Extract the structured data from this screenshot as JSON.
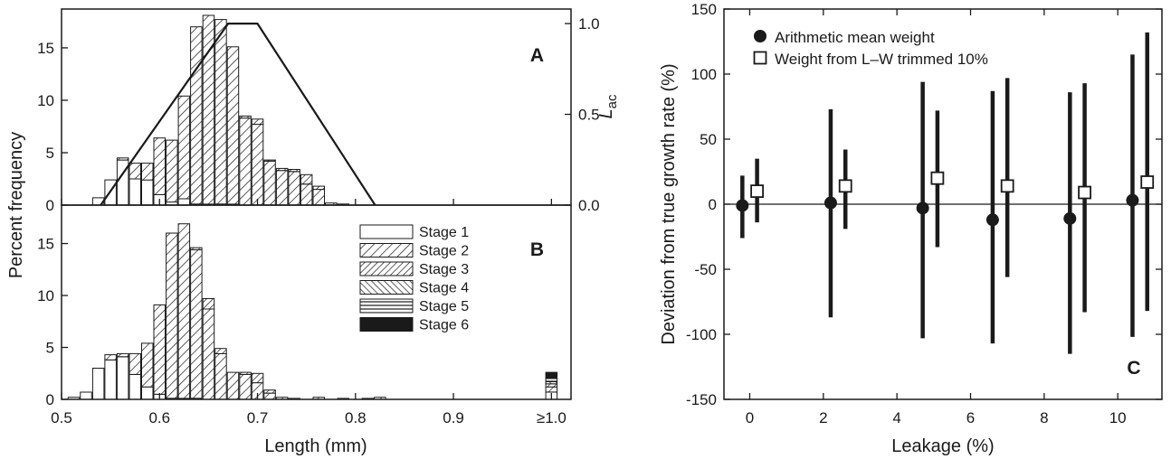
{
  "colors": {
    "ink": "#1a1a1a",
    "background": "#ffffff"
  },
  "chart_data": [
    {
      "panel": "A",
      "type": "bar",
      "stacked": true,
      "xlabel": "",
      "ylabel": "Percent frequency",
      "xlim": [
        0.5,
        1.02
      ],
      "ylim": [
        0,
        18.7
      ],
      "yticks": [
        0,
        5,
        10,
        15
      ],
      "y2label": {
        "main": "L",
        "sub": "ac"
      },
      "y2lim": [
        0,
        1.08
      ],
      "y2ticks": [
        "0.0",
        "0.5",
        "1.0"
      ],
      "bin_width": 0.0125,
      "bins": [
        0.5375,
        0.55,
        0.5625,
        0.575,
        0.5875,
        0.6,
        0.6125,
        0.625,
        0.6375,
        0.65,
        0.6625,
        0.675,
        0.6875,
        0.7,
        0.7125,
        0.725,
        0.7375,
        0.75,
        0.7625,
        0.775,
        0.7875,
        0.8,
        0.8125,
        0.825,
        0.8375
      ],
      "series": [
        {
          "name": "Stage 1",
          "values": [
            0.7,
            2.4,
            4.3,
            2.5,
            2.4,
            1.0,
            0.3,
            0.6,
            0.1,
            0.1,
            0.1,
            0.1,
            0,
            0,
            0,
            0,
            0,
            0,
            0,
            0,
            0,
            0,
            0,
            0,
            0
          ]
        },
        {
          "name": "Stage 2",
          "values": [
            0,
            0,
            0.2,
            1.5,
            1.6,
            5.4,
            5.9,
            9.8,
            16.9,
            18.0,
            17.6,
            15.0,
            8.3,
            7.7,
            4.2,
            3.3,
            3.2,
            2.0,
            1.5,
            0.2,
            0.1,
            0,
            0,
            0,
            0
          ]
        },
        {
          "name": "Stage 3",
          "values": [
            0,
            0,
            0,
            0,
            0,
            0,
            0,
            0,
            0,
            0,
            0,
            0,
            0.2,
            0.5,
            0.1,
            0.2,
            0.2,
            0.9,
            0.3,
            0,
            0,
            0,
            0,
            0,
            0
          ]
        },
        {
          "name": "Stage 4",
          "values": [
            0,
            0,
            0,
            0,
            0,
            0,
            0,
            0,
            0,
            0,
            0,
            0,
            0,
            0,
            0,
            0,
            0,
            0,
            0,
            0,
            0,
            0,
            0,
            0,
            0
          ]
        },
        {
          "name": "Stage 5",
          "values": [
            0,
            0,
            0,
            0,
            0,
            0,
            0,
            0,
            0,
            0,
            0,
            0,
            0,
            0,
            0,
            0,
            0,
            0,
            0,
            0,
            0,
            0,
            0,
            0,
            0
          ]
        },
        {
          "name": "Stage 6",
          "values": [
            0,
            0,
            0,
            0,
            0,
            0,
            0,
            0,
            0,
            0,
            0,
            0,
            0,
            0,
            0,
            0,
            0,
            0,
            0,
            0,
            0,
            0,
            0,
            0,
            0
          ]
        }
      ],
      "line": {
        "x": [
          0.54,
          0.67,
          0.7,
          0.82
        ],
        "y2": [
          0,
          1,
          1,
          0
        ]
      }
    },
    {
      "panel": "B",
      "type": "bar",
      "stacked": true,
      "xlabel": "Length (mm)",
      "ylabel": "Percent frequency",
      "xlim": [
        0.5,
        1.02
      ],
      "ylim": [
        0,
        18.7
      ],
      "yticks": [
        0,
        5,
        10,
        15
      ],
      "xticks": [
        0.5,
        0.6,
        0.7,
        0.8,
        0.9,
        1.0
      ],
      "xtick_labels": [
        "0.5",
        "0.6",
        "0.7",
        "0.8",
        "0.9",
        "≥1.0"
      ],
      "bin_width": 0.0125,
      "bins": [
        0.5125,
        0.525,
        0.5375,
        0.55,
        0.5625,
        0.575,
        0.5875,
        0.6,
        0.6125,
        0.625,
        0.6375,
        0.65,
        0.6625,
        0.675,
        0.6875,
        0.7,
        0.7125,
        0.725,
        0.7375,
        0.75,
        0.7625,
        0.775,
        0.7875,
        0.8,
        0.8125,
        0.825,
        0.85,
        0.9,
        0.95,
        1.0
      ],
      "series": [
        {
          "name": "Stage 1",
          "values": [
            0.2,
            0.7,
            3.0,
            3.8,
            4.1,
            2.4,
            1.2,
            0.5,
            0.1,
            0.1,
            0.1,
            0,
            0,
            0,
            0,
            0,
            0,
            0,
            0,
            0,
            0,
            0,
            0,
            0,
            0,
            0,
            0,
            0,
            0,
            0.7
          ]
        },
        {
          "name": "Stage 2",
          "values": [
            0,
            0,
            0,
            0.5,
            0.3,
            2.0,
            4.2,
            8.6,
            15.9,
            16.8,
            14.3,
            8.7,
            4.4,
            2.6,
            2.4,
            1.6,
            0.6,
            0.2,
            0.1,
            0,
            0.2,
            0,
            0.1,
            0,
            0.1,
            0.2,
            0,
            0,
            0,
            0.5
          ]
        },
        {
          "name": "Stage 3",
          "values": [
            0,
            0,
            0,
            0,
            0,
            0,
            0,
            0,
            0,
            0,
            0.2,
            1.0,
            0.5,
            0,
            0.2,
            0.9,
            0.3,
            0,
            0,
            0,
            0,
            0,
            0,
            0,
            0,
            0,
            0,
            0,
            0,
            0.3
          ]
        },
        {
          "name": "Stage 4",
          "values": [
            0,
            0,
            0,
            0,
            0,
            0,
            0,
            0,
            0,
            0,
            0,
            0,
            0,
            0,
            0,
            0,
            0,
            0,
            0,
            0,
            0,
            0,
            0,
            0,
            0,
            0,
            0,
            0,
            0,
            0.2
          ]
        },
        {
          "name": "Stage 5",
          "values": [
            0,
            0,
            0,
            0,
            0,
            0,
            0,
            0,
            0,
            0,
            0,
            0,
            0,
            0,
            0,
            0,
            0,
            0,
            0,
            0,
            0,
            0,
            0,
            0,
            0,
            0,
            0,
            0,
            0,
            0.3
          ]
        },
        {
          "name": "Stage 6",
          "values": [
            0,
            0,
            0,
            0,
            0,
            0,
            0,
            0,
            0,
            0,
            0,
            0,
            0,
            0,
            0,
            0,
            0,
            0,
            0,
            0,
            0,
            0,
            0,
            0,
            0,
            0,
            0,
            0,
            0,
            0.6
          ]
        }
      ],
      "legend": {
        "placement": "top-right",
        "entries": [
          "Stage 1",
          "Stage 2",
          "Stage 3",
          "Stage 4",
          "Stage 5",
          "Stage 6"
        ]
      }
    },
    {
      "panel": "C",
      "type": "scatter",
      "error_bars": true,
      "xlabel": "Leakage (%)",
      "ylabel": "Deviation from true growth rate (%)",
      "xlim": [
        -0.7,
        11.2
      ],
      "ylim": [
        -150,
        150
      ],
      "xticks": [
        0,
        2,
        4,
        6,
        8,
        10
      ],
      "yticks": [
        -150,
        -100,
        -50,
        0,
        50,
        100,
        150
      ],
      "reference_line": 0,
      "series": [
        {
          "name": "Arithmetic mean weight",
          "marker": "filled-circle",
          "x": [
            -0.2,
            2.2,
            4.7,
            6.6,
            8.7,
            10.4
          ],
          "y": [
            -1,
            1,
            -3,
            -12,
            -11,
            3
          ],
          "err_low": [
            -26,
            -87,
            -103,
            -107,
            -115,
            -102
          ],
          "err_high": [
            22,
            73,
            94,
            87,
            86,
            115
          ]
        },
        {
          "name": "Weight from L–W trimmed 10%",
          "marker": "open-square",
          "x": [
            0.2,
            2.6,
            5.1,
            7.0,
            9.1,
            10.8
          ],
          "y": [
            10,
            14,
            20,
            14,
            9,
            17
          ],
          "err_low": [
            -14,
            -19,
            -33,
            -56,
            -83,
            -82
          ],
          "err_high": [
            35,
            42,
            72,
            97,
            93,
            132
          ]
        }
      ],
      "legend": {
        "placement": "top-left",
        "entries": [
          "Arithmetic mean weight",
          "Weight from L–W trimmed 10%"
        ]
      }
    }
  ]
}
